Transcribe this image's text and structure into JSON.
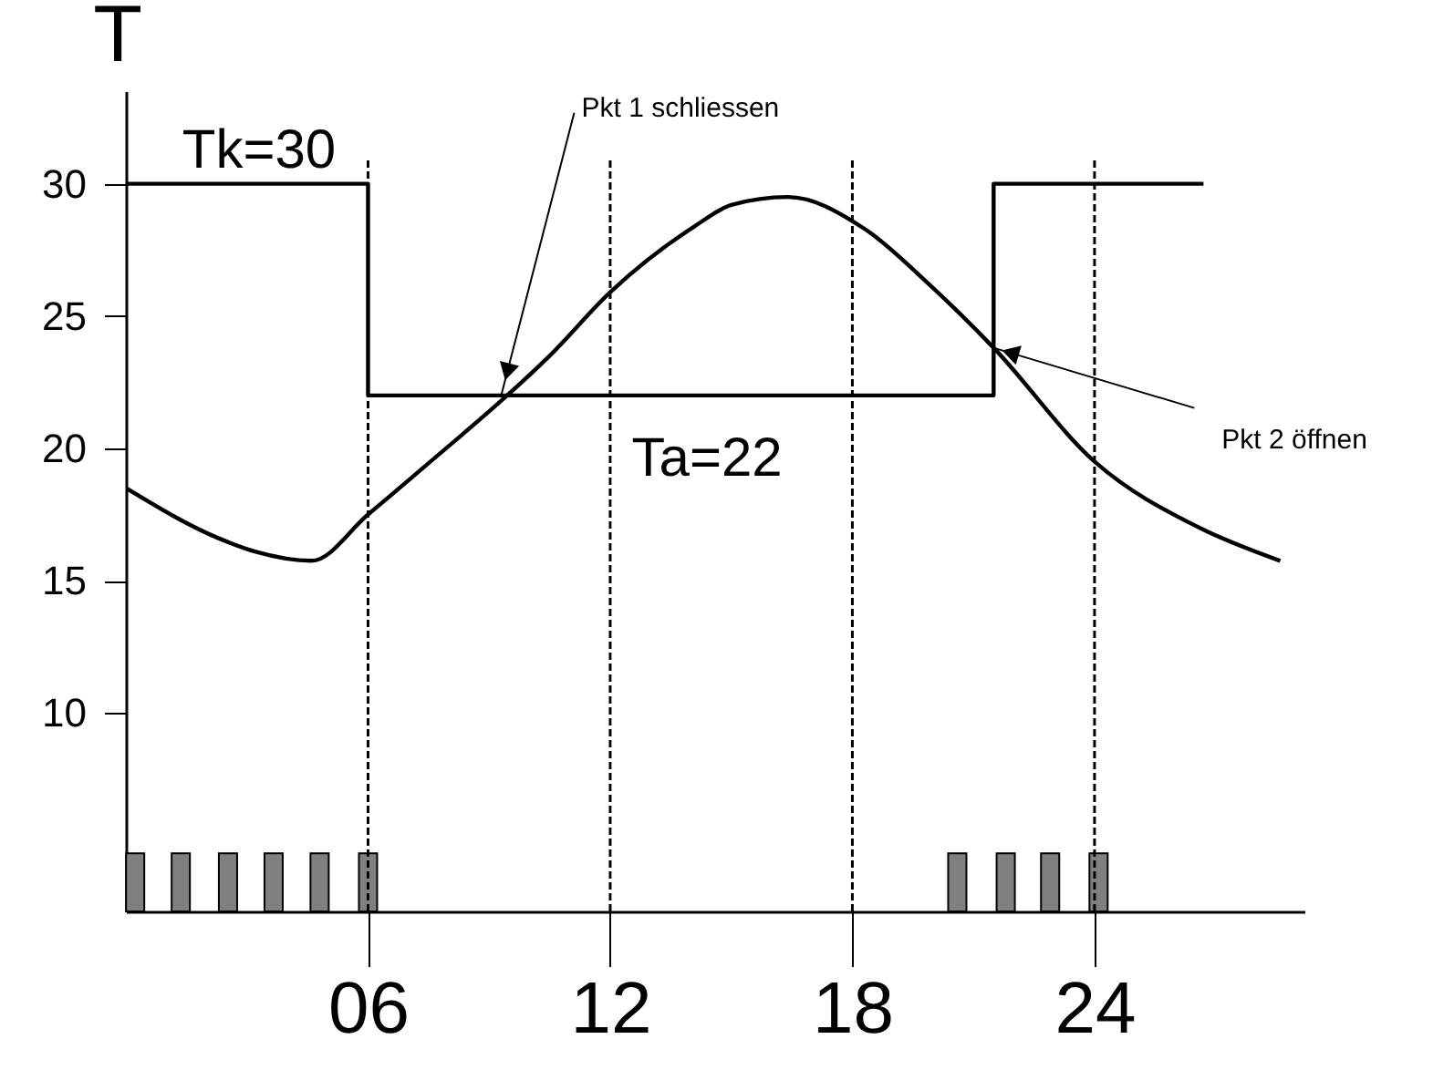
{
  "chart_data": {
    "type": "line",
    "ylabel": "T",
    "xlim": [
      0,
      29.2
    ],
    "ylim": [
      2.5,
      33.5
    ],
    "xticks": [
      {
        "value": 6,
        "label": "06"
      },
      12,
      18,
      24
    ],
    "yticks": [
      10,
      15,
      20,
      25,
      30
    ],
    "grid": false,
    "series": [
      {
        "type": "step",
        "color": "#000000",
        "x": [
          0,
          6,
          21.5,
          26.7
        ],
        "values": [
          30,
          22,
          30,
          30
        ]
      },
      {
        "color": "#000000",
        "x": [
          0,
          2.3,
          3.2,
          4.6,
          6,
          7.7,
          9.3,
          10.5,
          12,
          14.1,
          15,
          16.4,
          18.3,
          19.9,
          21.5,
          24,
          26.6,
          28.6
        ],
        "values": [
          18.5,
          16.6,
          16.1,
          15.75,
          17.5,
          19.7,
          21.8,
          23.5,
          25.9,
          28.4,
          29.2,
          29.5,
          28.3,
          26.2,
          23.8,
          19.5,
          17.0,
          15.75
        ]
      },
      {
        "type": "bar",
        "color": "#808080",
        "x": [
          0.23,
          1.36,
          2.53,
          3.66,
          4.8,
          6.0,
          20.6,
          21.8,
          22.9,
          24.1
        ],
        "base": [
          2.5,
          2.5,
          2.5,
          2.5,
          2.5,
          2.5,
          2.5,
          2.5,
          2.5,
          2.5
        ],
        "values": [
          2.2,
          2.2,
          2.2,
          2.2,
          2.2,
          2.2,
          2.2,
          2.2,
          2.2,
          2.2
        ]
      }
    ],
    "ref_lines": [
      {
        "axis": "x",
        "value": 6,
        "line_style": "dashed"
      },
      {
        "axis": "x",
        "value": 12,
        "line_style": "dashed"
      },
      {
        "axis": "x",
        "value": 18,
        "line_style": "dashed"
      },
      {
        "axis": "x",
        "value": 24,
        "line_style": "dashed"
      }
    ],
    "annotations": [
      {
        "text": "Tk=30",
        "x": 3.3,
        "y": 30
      },
      {
        "text": "Ta=22",
        "x": 14.4,
        "y": 22
      },
      {
        "text": "Pkt 1  schliessen",
        "x": 9.3,
        "y": 22
      },
      {
        "text": "Pkt 2 öffnen",
        "x": 21.5,
        "y": 23.8
      }
    ]
  }
}
